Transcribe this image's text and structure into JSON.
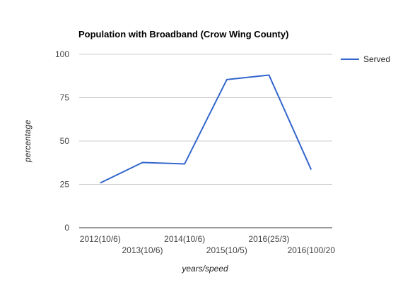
{
  "chart_data": {
    "type": "line",
    "title": "Population with Broadband (Crow Wing County)",
    "xlabel": "years/speed",
    "ylabel": "percentage",
    "categories": [
      "2012(10/6)",
      "2013(10/6)",
      "2014(10/6)",
      "2015(10/5)",
      "2016(25/3)",
      "2016(100/20"
    ],
    "series": [
      {
        "name": "Served",
        "values": [
          25.8,
          37.6,
          36.8,
          85.4,
          88.0,
          33.5
        ],
        "color": "#3366cc"
      }
    ],
    "ylim": [
      0,
      100
    ],
    "yticks": [
      0,
      25,
      50,
      75,
      100
    ],
    "grid": true,
    "legend_position": "right"
  }
}
